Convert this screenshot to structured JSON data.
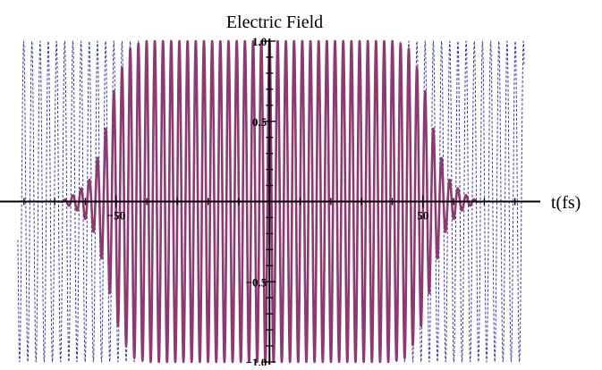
{
  "chart_data": {
    "type": "line",
    "title": "Electric Field",
    "xlabel": "t(fs)",
    "ylabel": "",
    "xlim": [
      -82,
      83
    ],
    "ylim": [
      -1.0,
      1.0
    ],
    "x_ticks": [
      -50,
      50
    ],
    "x_tick_labels": [
      "−50",
      "50"
    ],
    "y_ticks": [
      1.0,
      0.5,
      -0.5,
      -1.0
    ],
    "y_tick_labels": [
      "1.0",
      "0.5",
      "−0.5",
      "−1.0"
    ],
    "grid": false,
    "legend": "none",
    "series": [
      {
        "style": "dashed",
        "color": "#3b3b9a",
        "description": "carrier wave, constant amplitude 1.0, spans full axis range",
        "amplitude": 1.0,
        "period_fs": 2.67,
        "x_range": [
          -82,
          83
        ]
      },
      {
        "style": "solid",
        "color": "#8b3a72",
        "description": "pulse with flat-top envelope, amplitude 1.0 between about -45 and 45 fs, tapering to 0 near ±65 fs",
        "amplitude": 1.0,
        "period_fs": 2.67,
        "envelope_points": [
          [
            -68,
            0.0
          ],
          [
            -63,
            0.05
          ],
          [
            -58,
            0.15
          ],
          [
            -54,
            0.4
          ],
          [
            -50,
            0.75
          ],
          [
            -45,
            0.97
          ],
          [
            -40,
            1.0
          ],
          [
            40,
            1.0
          ],
          [
            45,
            0.97
          ],
          [
            50,
            0.75
          ],
          [
            54,
            0.4
          ],
          [
            58,
            0.15
          ],
          [
            63,
            0.05
          ],
          [
            68,
            0.0
          ]
        ]
      }
    ]
  }
}
